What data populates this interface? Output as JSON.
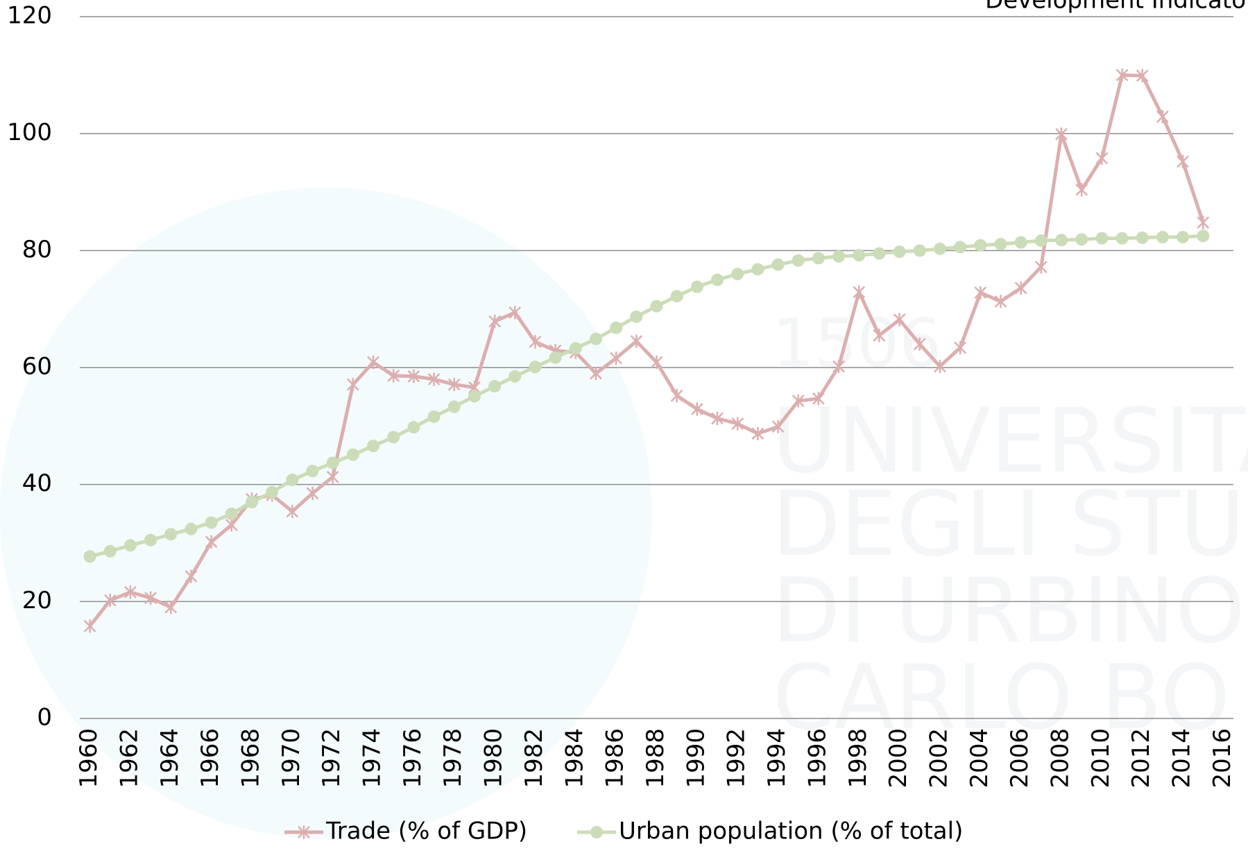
{
  "chart_data": {
    "type": "line",
    "title": "Development Indicato",
    "watermark": [
      "1506",
      "UNIVERSITÀ",
      "DEGLI STUD",
      "DI URBINO",
      "CARLO BO"
    ],
    "x": [
      1960,
      1961,
      1962,
      1963,
      1964,
      1965,
      1966,
      1967,
      1968,
      1969,
      1970,
      1971,
      1972,
      1973,
      1974,
      1975,
      1976,
      1977,
      1978,
      1979,
      1980,
      1981,
      1982,
      1983,
      1984,
      1985,
      1986,
      1987,
      1988,
      1989,
      1990,
      1991,
      1992,
      1993,
      1994,
      1995,
      1996,
      1997,
      1998,
      1999,
      2000,
      2001,
      2002,
      2003,
      2004,
      2005,
      2006,
      2007,
      2008,
      2009,
      2010,
      2011,
      2012,
      2013,
      2014,
      2015
    ],
    "series": [
      {
        "name": "Trade (% of GDP)",
        "color": "#dcaeae",
        "marker": "star",
        "values": [
          15.8,
          20.2,
          21.6,
          20.6,
          19.0,
          24.3,
          30.2,
          33.1,
          37.5,
          38.2,
          35.4,
          38.5,
          41.3,
          57.1,
          60.9,
          58.6,
          58.5,
          58.0,
          57.1,
          56.6,
          67.9,
          69.4,
          64.4,
          62.9,
          62.6,
          59.0,
          61.6,
          64.5,
          60.9,
          55.2,
          52.9,
          51.3,
          50.4,
          48.7,
          49.9,
          54.3,
          54.7,
          60.2,
          72.9,
          65.5,
          68.2,
          64.0,
          60.2,
          63.4,
          72.8,
          71.3,
          73.6,
          77.2,
          99.9,
          90.4,
          95.8,
          110.0,
          109.9,
          102.9,
          95.2,
          84.8
        ]
      },
      {
        "name": "Urban population (% of total)",
        "color": "#cbdcb8",
        "marker": "circle",
        "values": [
          27.7,
          28.6,
          29.6,
          30.5,
          31.5,
          32.4,
          33.5,
          35.0,
          37.0,
          38.7,
          40.8,
          42.3,
          43.7,
          45.1,
          46.6,
          48.1,
          49.8,
          51.6,
          53.3,
          55.1,
          56.8,
          58.5,
          60.1,
          61.7,
          63.3,
          64.9,
          66.8,
          68.7,
          70.5,
          72.2,
          73.8,
          75.0,
          76.0,
          76.8,
          77.6,
          78.3,
          78.7,
          79.0,
          79.2,
          79.5,
          79.8,
          80.0,
          80.3,
          80.6,
          80.9,
          81.1,
          81.4,
          81.7,
          81.8,
          81.9,
          82.1,
          82.1,
          82.2,
          82.3,
          82.3,
          82.5
        ]
      }
    ],
    "xlim": [
      1959.5,
      2016.5
    ],
    "xticks": [
      1960,
      1962,
      1964,
      1966,
      1968,
      1970,
      1972,
      1974,
      1976,
      1978,
      1980,
      1982,
      1984,
      1986,
      1988,
      1990,
      1992,
      1994,
      1996,
      1998,
      2000,
      2002,
      2004,
      2006,
      2008,
      2010,
      2012,
      2014,
      2016
    ],
    "ylim": [
      0,
      120
    ],
    "yticks": [
      0,
      20,
      40,
      60,
      80,
      100,
      120
    ],
    "grid": true,
    "legend": "bottom"
  }
}
